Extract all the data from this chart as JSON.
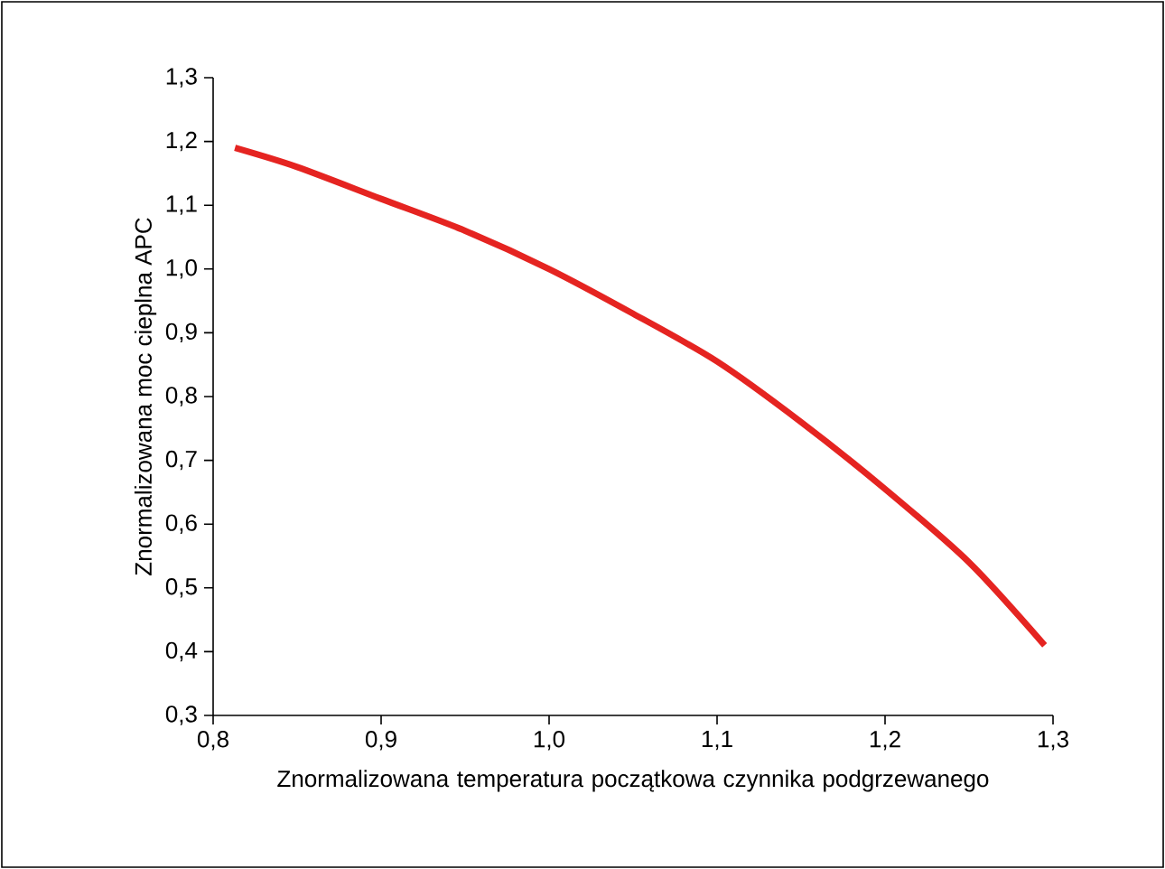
{
  "chart_data": {
    "type": "line",
    "xlabel": "Znormalizowana temperatura początkowa czynnika podgrzewanego",
    "ylabel": "Znormalizowana moc cieplna APC",
    "x": [
      0.813,
      0.85,
      0.9,
      0.95,
      1.0,
      1.05,
      1.1,
      1.15,
      1.2,
      1.25,
      1.295
    ],
    "series": [
      {
        "color": "#e52421",
        "values": [
          1.19,
          1.16,
          1.11,
          1.06,
          1.0,
          0.93,
          0.855,
          0.76,
          0.655,
          0.54,
          0.41
        ]
      }
    ],
    "xlim": [
      0.8,
      1.3
    ],
    "ylim": [
      0.3,
      1.3
    ],
    "xticks": [
      {
        "value": 0.8,
        "label": "0,8"
      },
      {
        "value": 0.9,
        "label": "0,9"
      },
      {
        "value": 1.0,
        "label": "1,0"
      },
      {
        "value": 1.1,
        "label": "1,1"
      },
      {
        "value": 1.2,
        "label": "1,2"
      },
      {
        "value": 1.3,
        "label": "1,3"
      }
    ],
    "yticks": [
      {
        "value": 0.3,
        "label": "0,3"
      },
      {
        "value": 0.4,
        "label": "0,4"
      },
      {
        "value": 0.5,
        "label": "0,5"
      },
      {
        "value": 0.6,
        "label": "0,6"
      },
      {
        "value": 0.7,
        "label": "0,7"
      },
      {
        "value": 0.8,
        "label": "0,8"
      },
      {
        "value": 0.9,
        "label": "0,9"
      },
      {
        "value": 1.0,
        "label": "1,0"
      },
      {
        "value": 1.1,
        "label": "1,1"
      },
      {
        "value": 1.2,
        "label": "1,2"
      },
      {
        "value": 1.3,
        "label": "1,3"
      }
    ],
    "marker": "none",
    "line_style": "solid"
  }
}
